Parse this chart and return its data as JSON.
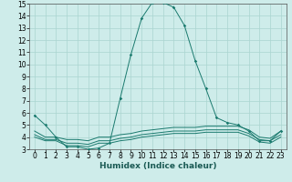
{
  "xlabel": "Humidex (Indice chaleur)",
  "bg_color": "#ceecea",
  "grid_color": "#aad4d0",
  "line_color": "#1a7a6e",
  "xlim": [
    -0.5,
    23.5
  ],
  "ylim": [
    3,
    15
  ],
  "x_ticks": [
    0,
    1,
    2,
    3,
    4,
    5,
    6,
    7,
    8,
    9,
    10,
    11,
    12,
    13,
    14,
    15,
    16,
    17,
    18,
    19,
    20,
    21,
    22,
    23
  ],
  "y_ticks": [
    3,
    4,
    5,
    6,
    7,
    8,
    9,
    10,
    11,
    12,
    13,
    14,
    15
  ],
  "main_line_x": [
    0,
    1,
    2,
    3,
    4,
    5,
    6,
    7,
    8,
    9,
    10,
    11,
    12,
    13,
    14,
    15,
    16,
    17,
    18,
    19,
    20,
    21,
    22,
    23
  ],
  "main_line_y": [
    5.8,
    5.0,
    4.0,
    3.2,
    3.2,
    3.0,
    3.1,
    3.5,
    7.2,
    10.8,
    13.8,
    15.1,
    15.1,
    14.7,
    13.2,
    10.3,
    8.0,
    5.6,
    5.2,
    5.0,
    4.5,
    3.7,
    3.7,
    4.5
  ],
  "line2_x": [
    0,
    1,
    2,
    3,
    4,
    5,
    6,
    7,
    8,
    9,
    10,
    11,
    12,
    13,
    14,
    15,
    16,
    17,
    18,
    19,
    20,
    21,
    22,
    23
  ],
  "line2_y": [
    4.5,
    4.0,
    4.0,
    3.8,
    3.8,
    3.7,
    4.0,
    4.0,
    4.2,
    4.3,
    4.5,
    4.6,
    4.7,
    4.8,
    4.8,
    4.8,
    4.9,
    4.9,
    4.9,
    4.9,
    4.6,
    4.0,
    3.9,
    4.5
  ],
  "line3_x": [
    0,
    1,
    2,
    3,
    4,
    5,
    6,
    7,
    8,
    9,
    10,
    11,
    12,
    13,
    14,
    15,
    16,
    17,
    18,
    19,
    20,
    21,
    22,
    23
  ],
  "line3_y": [
    4.2,
    3.8,
    3.8,
    3.5,
    3.5,
    3.4,
    3.7,
    3.7,
    3.9,
    4.0,
    4.2,
    4.3,
    4.4,
    4.5,
    4.5,
    4.5,
    4.6,
    4.6,
    4.6,
    4.6,
    4.3,
    3.8,
    3.7,
    4.2
  ],
  "line4_x": [
    0,
    1,
    2,
    3,
    4,
    5,
    6,
    7,
    8,
    9,
    10,
    11,
    12,
    13,
    14,
    15,
    16,
    17,
    18,
    19,
    20,
    21,
    22,
    23
  ],
  "line4_y": [
    4.0,
    3.7,
    3.7,
    3.3,
    3.3,
    3.2,
    3.5,
    3.5,
    3.7,
    3.8,
    4.0,
    4.1,
    4.2,
    4.3,
    4.3,
    4.3,
    4.4,
    4.4,
    4.4,
    4.4,
    4.1,
    3.6,
    3.5,
    4.0
  ],
  "tick_fontsize": 5.5,
  "xlabel_fontsize": 6.5,
  "lw": 0.7,
  "marker_size": 1.8
}
